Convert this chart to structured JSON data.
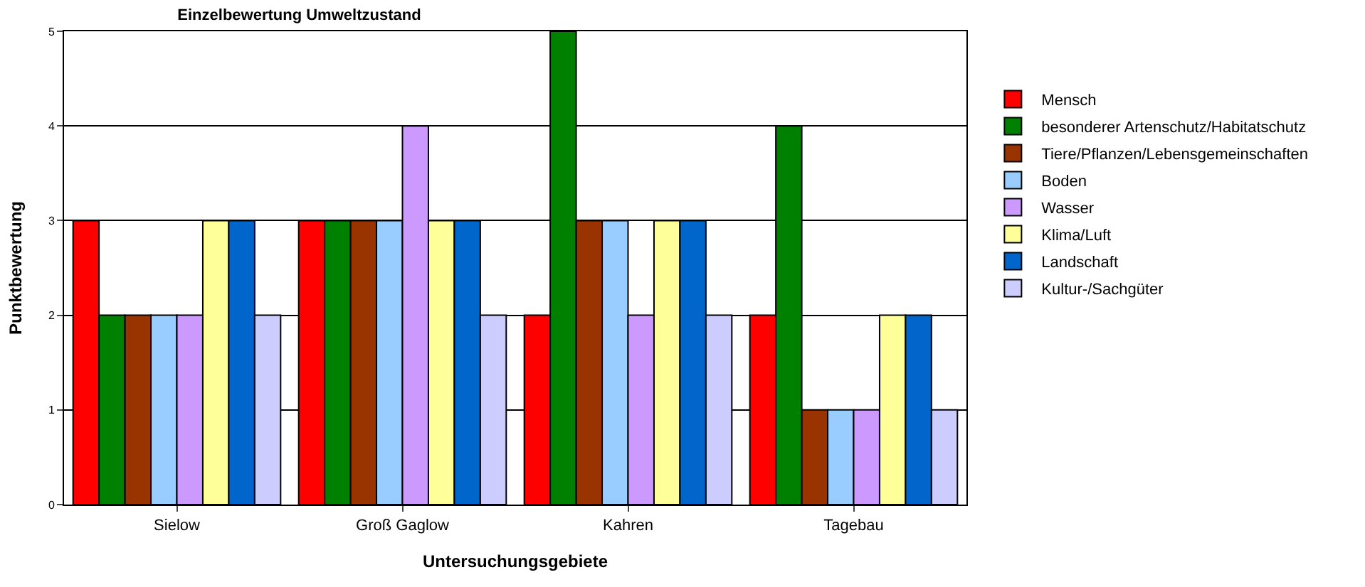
{
  "chart_data": {
    "type": "bar",
    "title": "Einzelbewertung Umweltzustand",
    "xlabel": "Untersuchungsgebiete",
    "ylabel": "Punktbewertung",
    "categories": [
      "Sielow",
      "Groß Gaglow",
      "Kahren",
      "Tagebau"
    ],
    "series": [
      {
        "name": "Mensch",
        "color": "#ff0000",
        "values": [
          3,
          3,
          2,
          2
        ]
      },
      {
        "name": "besonderer Artenschutz/Habitatschutz",
        "color": "#008000",
        "values": [
          2,
          3,
          5,
          4
        ]
      },
      {
        "name": "Tiere/Pflanzen/Lebensgemeinschaften",
        "color": "#993300",
        "values": [
          2,
          3,
          3,
          1
        ]
      },
      {
        "name": "Boden",
        "color": "#99ccff",
        "values": [
          2,
          3,
          3,
          1
        ]
      },
      {
        "name": "Wasser",
        "color": "#cc99ff",
        "values": [
          2,
          4,
          2,
          1
        ]
      },
      {
        "name": "Klima/Luft",
        "color": "#ffff99",
        "values": [
          3,
          3,
          3,
          2
        ]
      },
      {
        "name": "Landschaft",
        "color": "#0066cc",
        "values": [
          3,
          3,
          3,
          2
        ]
      },
      {
        "name": "Kultur-/Sachgüter",
        "color": "#ccccff",
        "values": [
          2,
          2,
          2,
          1
        ]
      }
    ],
    "ylim": [
      0,
      5
    ],
    "yticks": [
      0,
      1,
      2,
      3,
      4,
      5
    ],
    "grid": "y",
    "legend": "right"
  }
}
